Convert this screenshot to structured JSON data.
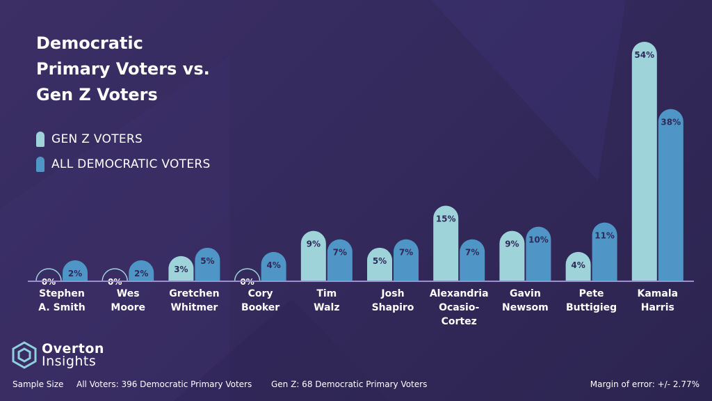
{
  "title_lines": [
    "Democratic",
    "Primary Voters vs.",
    "Gen Z Voters"
  ],
  "colors": {
    "gen_z": "#9fd3da",
    "all_dem": "#4f95c6",
    "bg": "#352b5e",
    "axis": "#9c8fd0"
  },
  "legend": [
    {
      "label": "GEN Z VOTERS",
      "color": "#9fd3da"
    },
    {
      "label": "ALL DEMOCRATIC VOTERS",
      "color": "#4f95c6"
    }
  ],
  "chart_data": {
    "type": "bar",
    "categories": [
      [
        "Stephen",
        "A. Smith"
      ],
      [
        "Wes",
        "Moore"
      ],
      [
        "Gretchen",
        "Whitmer"
      ],
      [
        "Cory",
        "Booker"
      ],
      [
        "Tim",
        "Walz"
      ],
      [
        "Josh",
        "Shapiro"
      ],
      [
        "Alexandria",
        "Ocasio-",
        "Cortez"
      ],
      [
        "Gavin",
        "Newsom"
      ],
      [
        "Pete",
        "Buttigieg"
      ],
      [
        "Kamala",
        "Harris"
      ]
    ],
    "series": [
      {
        "name": "GEN Z VOTERS",
        "values": [
          0,
          0,
          3,
          0,
          9,
          5,
          15,
          9,
          4,
          54
        ]
      },
      {
        "name": "ALL DEMOCRATIC VOTERS",
        "values": [
          2,
          2,
          5,
          4,
          7,
          7,
          7,
          10,
          11,
          38
        ]
      }
    ],
    "labels": [
      [
        "0%",
        "0%",
        "3%",
        "0%",
        "9%",
        "5%",
        "15%",
        "9%",
        "4%",
        "54%"
      ],
      [
        "2%",
        "2%",
        "5%",
        "4%",
        "7%",
        "7%",
        "7%",
        "10%",
        "11%",
        "38%"
      ]
    ],
    "ylim": [
      0,
      54
    ]
  },
  "logo": {
    "line1": "Overton",
    "line2": "Insights"
  },
  "footer": {
    "sample_label": "Sample Size",
    "all_voters": "All Voters: 396 Democratic Primary Voters",
    "gen_z": "Gen Z: 68 Democratic Primary Voters",
    "margin": "Margin of error: +/- 2.77%"
  }
}
